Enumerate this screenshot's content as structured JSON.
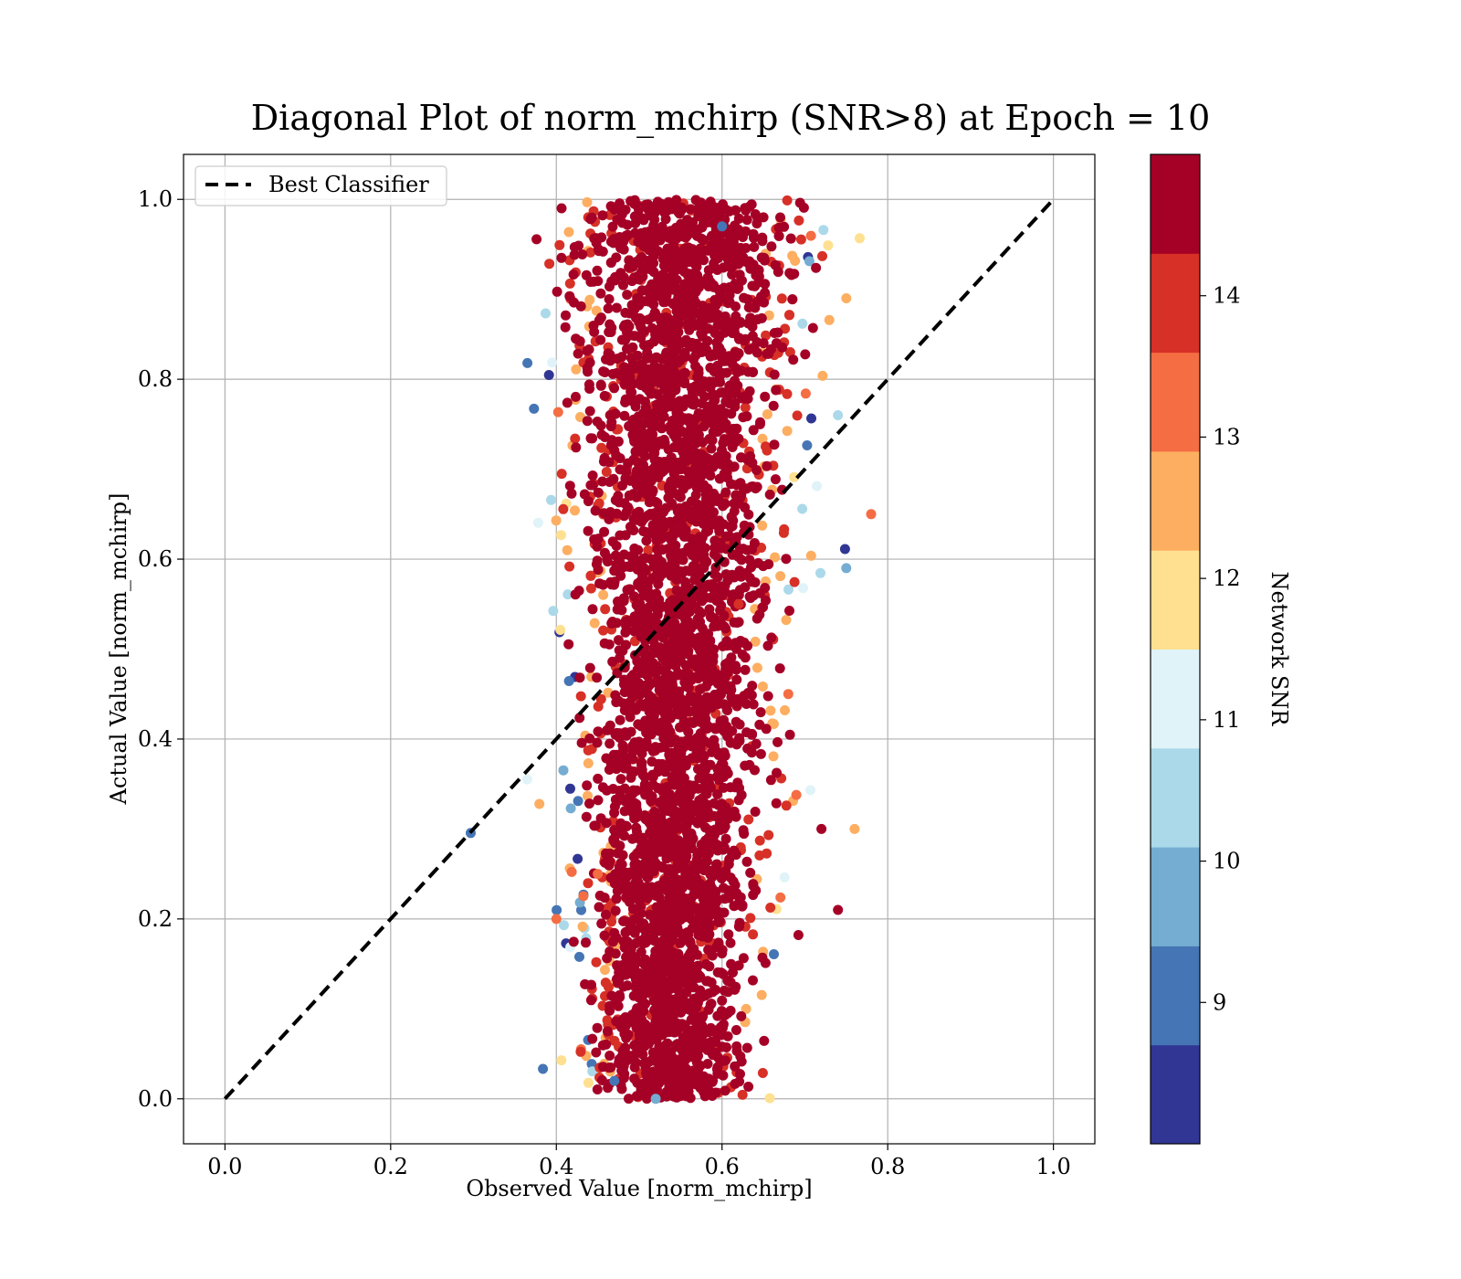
{
  "chart_data": {
    "type": "scatter",
    "title": "Diagonal Plot of norm_mchirp (SNR>8) at Epoch = 10",
    "xlabel": "Observed Value [norm_mchirp]",
    "ylabel": "Actual Value [norm_mchirp]",
    "xlim": [
      -0.05,
      1.05
    ],
    "ylim": [
      -0.05,
      1.05
    ],
    "x_ticks": [
      "0.0",
      "0.2",
      "0.4",
      "0.6",
      "0.8",
      "1.0"
    ],
    "y_ticks": [
      "0.0",
      "0.2",
      "0.4",
      "0.6",
      "0.8",
      "1.0"
    ],
    "grid": true,
    "legend": {
      "position": "top-left",
      "entries": [
        "Best Classifier"
      ]
    },
    "reference_line": {
      "name": "Best Classifier",
      "style": "dashed",
      "color": "#000000",
      "x": [
        0,
        1
      ],
      "y": [
        0,
        1
      ]
    },
    "colorbar": {
      "label": "Network SNR",
      "range": [
        8,
        15
      ],
      "ticks": [
        "9",
        "10",
        "11",
        "12",
        "13",
        "14"
      ],
      "colors": [
        "#313695",
        "#4575b4",
        "#74add1",
        "#abd9e9",
        "#e0f3f8",
        "#fee090",
        "#fdae61",
        "#f46d43",
        "#d73027",
        "#a50026"
      ]
    },
    "points_sample": [
      {
        "x": 0.53,
        "y": 0.5,
        "snr": 15
      },
      {
        "x": 0.55,
        "y": 0.8,
        "snr": 15
      },
      {
        "x": 0.52,
        "y": 0.2,
        "snr": 15
      },
      {
        "x": 0.58,
        "y": 0.35,
        "snr": 15
      },
      {
        "x": 0.5,
        "y": 0.65,
        "snr": 14.5
      },
      {
        "x": 0.62,
        "y": 0.55,
        "snr": 14
      },
      {
        "x": 0.68,
        "y": 0.45,
        "snr": 13.5
      },
      {
        "x": 0.72,
        "y": 0.3,
        "snr": 14.5
      },
      {
        "x": 0.45,
        "y": 0.25,
        "snr": 13
      },
      {
        "x": 0.75,
        "y": 0.89,
        "snr": 12.5
      },
      {
        "x": 0.78,
        "y": 0.65,
        "snr": 13.5
      },
      {
        "x": 0.74,
        "y": 0.21,
        "snr": 15
      },
      {
        "x": 0.4,
        "y": 0.2,
        "snr": 13
      },
      {
        "x": 0.47,
        "y": 0.02,
        "snr": 9
      },
      {
        "x": 0.52,
        "y": 0.0,
        "snr": 10
      },
      {
        "x": 0.6,
        "y": 0.97,
        "snr": 9
      },
      {
        "x": 0.65,
        "y": 0.98,
        "snr": 14.5
      },
      {
        "x": 0.76,
        "y": 0.3,
        "snr": 12.5
      },
      {
        "x": 0.75,
        "y": 0.59,
        "snr": 9.5
      },
      {
        "x": 0.74,
        "y": 0.76,
        "snr": 10.5
      }
    ]
  }
}
